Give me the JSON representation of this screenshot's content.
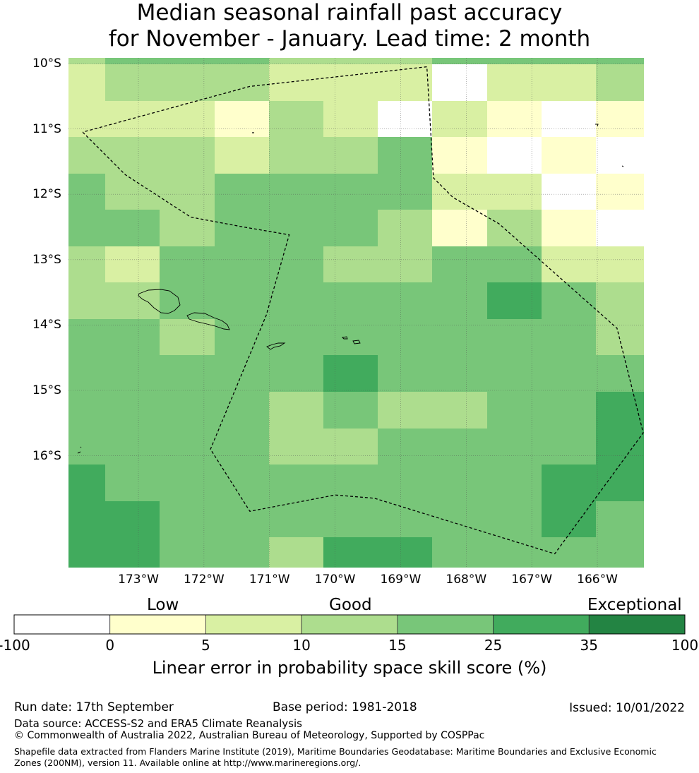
{
  "title": {
    "line1": "Median seasonal rainfall past accuracy",
    "line2": "for November - January. Lead time: 2 month"
  },
  "map": {
    "lat_labels": [
      "10°S",
      "11°S",
      "12°S",
      "13°S",
      "14°S",
      "15°S",
      "16°S"
    ],
    "lon_labels": [
      "173°W",
      "172°W",
      "171°W",
      "170°W",
      "169°W",
      "168°W",
      "167°W",
      "166°W"
    ],
    "grid_rows": [
      [
        2,
        3,
        3,
        3,
        2,
        2,
        2,
        0,
        2,
        2,
        3
      ],
      [
        2,
        2,
        2,
        1,
        3,
        2,
        0,
        2,
        1,
        0,
        1
      ],
      [
        3,
        3,
        3,
        2,
        3,
        3,
        4,
        1,
        0,
        1,
        0
      ],
      [
        4,
        3,
        3,
        4,
        4,
        4,
        4,
        2,
        2,
        0,
        1
      ],
      [
        4,
        4,
        3,
        4,
        4,
        4,
        3,
        1,
        3,
        1,
        0
      ],
      [
        3,
        2,
        4,
        4,
        4,
        3,
        3,
        4,
        4,
        2,
        2
      ],
      [
        3,
        3,
        4,
        4,
        4,
        4,
        4,
        4,
        5,
        4,
        3
      ],
      [
        4,
        4,
        3,
        4,
        4,
        4,
        4,
        4,
        4,
        4,
        3
      ],
      [
        4,
        4,
        4,
        4,
        4,
        5,
        4,
        4,
        4,
        4,
        4
      ],
      [
        4,
        4,
        4,
        4,
        3,
        4,
        3,
        3,
        4,
        4,
        5
      ],
      [
        4,
        4,
        4,
        4,
        3,
        3,
        4,
        4,
        4,
        4,
        5
      ],
      [
        5,
        4,
        4,
        4,
        4,
        4,
        4,
        4,
        4,
        5,
        5
      ],
      [
        5,
        5,
        4,
        4,
        4,
        4,
        4,
        4,
        4,
        5,
        4
      ],
      [
        5,
        5,
        4,
        4,
        3,
        5,
        5,
        4,
        4,
        4,
        4
      ]
    ],
    "eez_boundary_lonlat": [
      [
        -173.85,
        -11.05
      ],
      [
        -173.2,
        -11.7
      ],
      [
        -172.2,
        -12.35
      ],
      [
        -171.4,
        -12.5
      ],
      [
        -170.7,
        -12.62
      ],
      [
        -171.05,
        -13.85
      ],
      [
        -171.9,
        -15.9
      ],
      [
        -171.3,
        -16.85
      ],
      [
        -170.0,
        -16.6
      ],
      [
        -169.4,
        -16.65
      ],
      [
        -166.65,
        -17.5
      ],
      [
        -165.3,
        -15.65
      ],
      [
        -165.7,
        -14.05
      ],
      [
        -167.5,
        -12.45
      ],
      [
        -168.2,
        -12.05
      ],
      [
        -168.5,
        -11.75
      ],
      [
        -168.6,
        -10.05
      ],
      [
        -171.3,
        -10.35
      ],
      [
        -173.85,
        -11.05
      ]
    ],
    "colors": {
      "background_land_outline": "#000000",
      "boundary_line": "#000000"
    }
  },
  "colorbar": {
    "category_labels": [
      "Low",
      "Good",
      "Exceptional"
    ],
    "ticks": [
      "-100",
      "0",
      "5",
      "10",
      "15",
      "25",
      "35",
      "100"
    ],
    "colors": [
      "#ffffff",
      "#ffffcc",
      "#d9f0a3",
      "#addd8e",
      "#78c679",
      "#41ab5d",
      "#238443"
    ],
    "title": "Linear error in probability space skill score (%)"
  },
  "footer": {
    "run_date": "Run date: 17th September",
    "base_period": "Base period: 1981-2018",
    "issued": "Issued: 10/01/2022",
    "data_source": "Data source: ACCESS-S2 and ERA5 Climate Reanalysis",
    "copyright": "© Commonwealth of Australia 2022, Australian Bureau of Meteorology, Supported by COSPPac",
    "shapefile_note": "Shapefile data extracted from Flanders Marine Institute (2019), Maritime Boundaries Geodatabase: Maritime Boundaries and Exclusive Economic Zones (200NM), version 11. Available online at http://www.marineregions.org/."
  }
}
